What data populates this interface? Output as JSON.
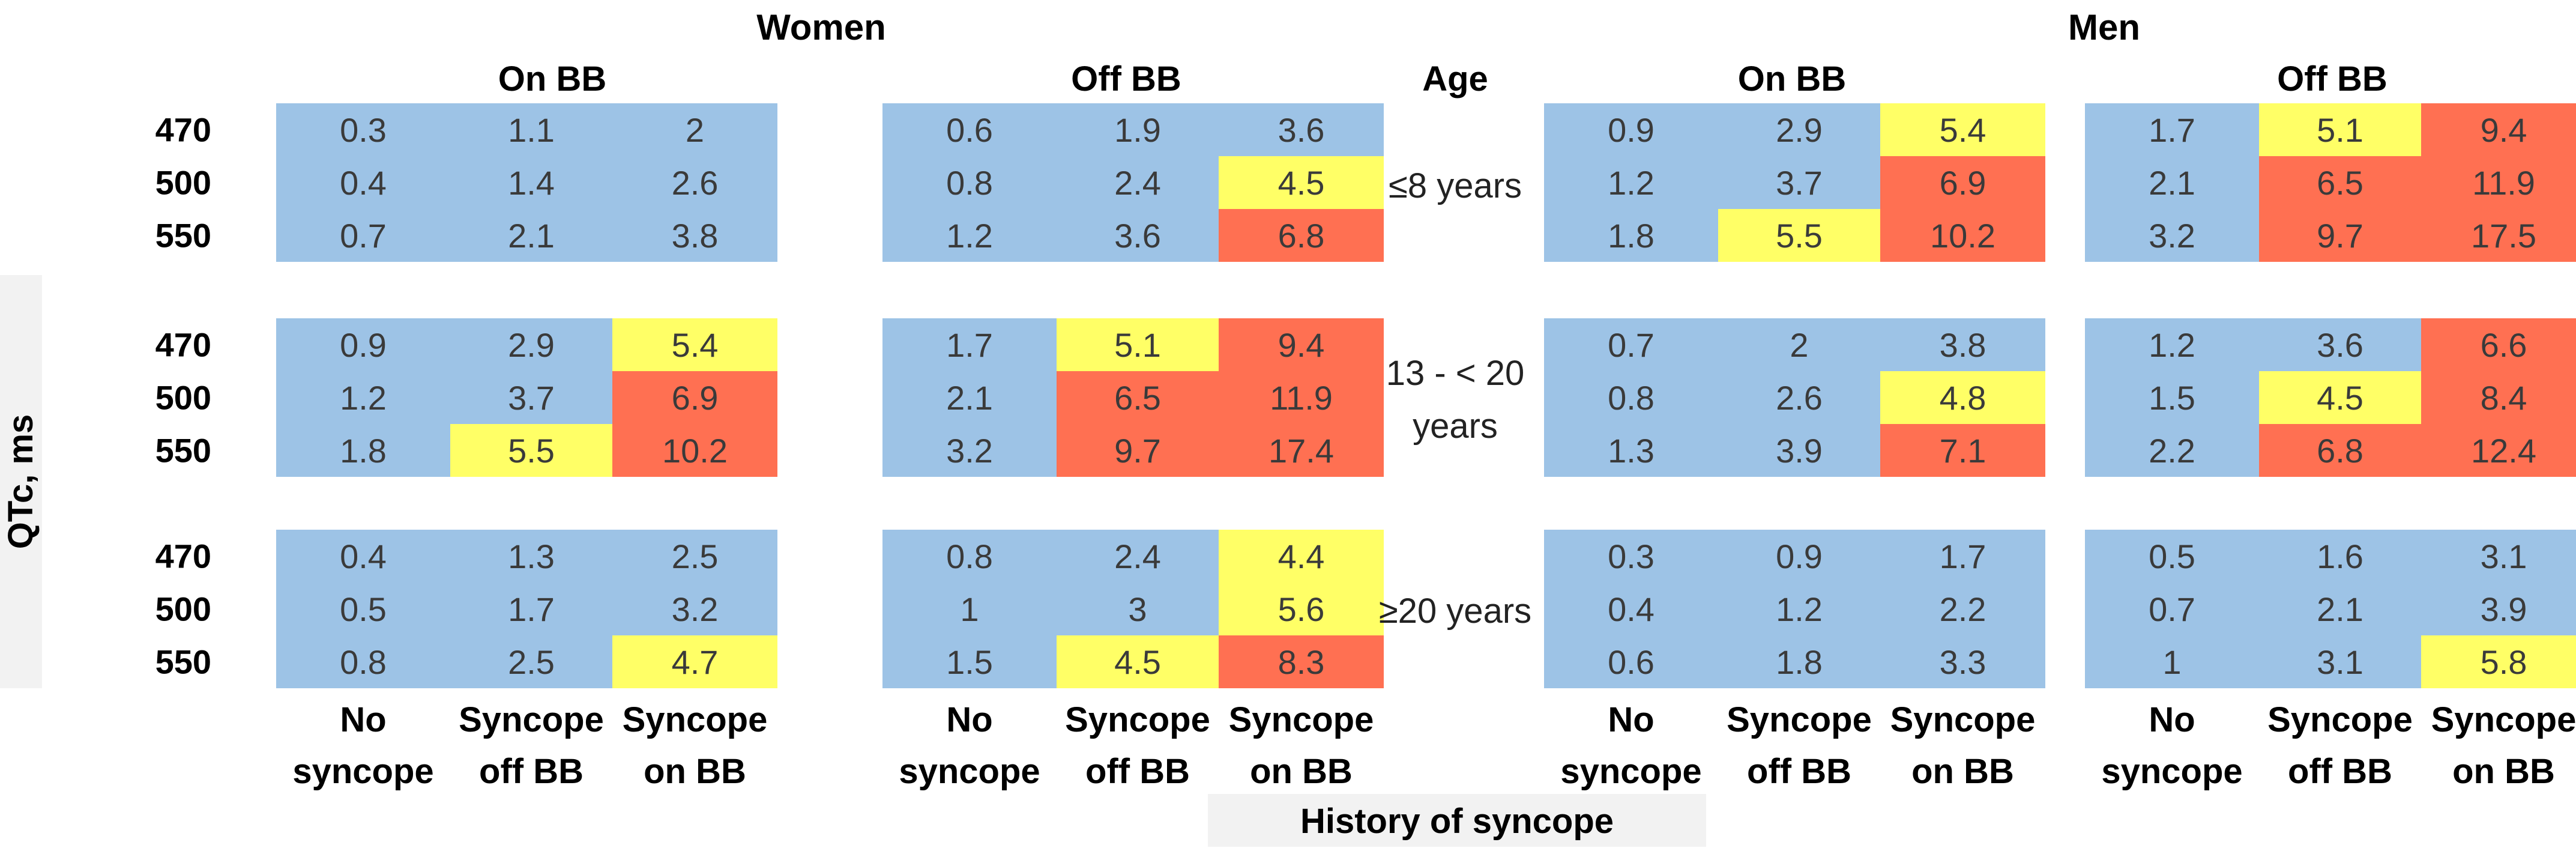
{
  "chart_data": {
    "type": "heatmap",
    "row_label_axis": "QTc, ms",
    "column_label_axis": "History of syncope",
    "age_header": "Age",
    "sex_groups": [
      "Women",
      "Men"
    ],
    "treatment_groups": [
      "On BB",
      "Off BB"
    ],
    "qtc_levels": [
      "470",
      "500",
      "550"
    ],
    "syncope_columns": [
      [
        "No",
        "syncope"
      ],
      [
        "Syncope",
        "off BB"
      ],
      [
        "Syncope",
        "on BB"
      ]
    ],
    "age_groups": [
      {
        "label_lines": [
          "≤8 years"
        ]
      },
      {
        "label_lines": [
          "13 - < 20",
          "years"
        ]
      },
      {
        "label_lines": [
          "≥20 years"
        ]
      }
    ],
    "colors": {
      "low": "#9dc3e6",
      "mid": "#ffff66",
      "high": "#ff7052"
    },
    "color_legend": {
      "low": "blue",
      "mid": "yellow",
      "high": "red"
    },
    "blocks": {
      "women_on_bb": [
        [
          [
            0.3,
            1.1,
            2
          ],
          [
            0.4,
            1.4,
            2.6
          ],
          [
            0.7,
            2.1,
            3.8
          ]
        ],
        [
          [
            0.9,
            2.9,
            5.4
          ],
          [
            1.2,
            3.7,
            6.9
          ],
          [
            1.8,
            5.5,
            10.2
          ]
        ],
        [
          [
            0.4,
            1.3,
            2.5
          ],
          [
            0.5,
            1.7,
            3.2
          ],
          [
            0.8,
            2.5,
            4.7
          ]
        ]
      ],
      "women_off_bb": [
        [
          [
            0.6,
            1.9,
            3.6
          ],
          [
            0.8,
            2.4,
            4.5
          ],
          [
            1.2,
            3.6,
            6.8
          ]
        ],
        [
          [
            1.7,
            5.1,
            9.4
          ],
          [
            2.1,
            6.5,
            11.9
          ],
          [
            3.2,
            9.7,
            17.4
          ]
        ],
        [
          [
            0.8,
            2.4,
            4.4
          ],
          [
            1,
            3,
            5.6
          ],
          [
            1.5,
            4.5,
            8.3
          ]
        ]
      ],
      "men_on_bb": [
        [
          [
            0.9,
            2.9,
            5.4
          ],
          [
            1.2,
            3.7,
            6.9
          ],
          [
            1.8,
            5.5,
            10.2
          ]
        ],
        [
          [
            0.7,
            2,
            3.8
          ],
          [
            0.8,
            2.6,
            4.8
          ],
          [
            1.3,
            3.9,
            7.1
          ]
        ],
        [
          [
            0.3,
            0.9,
            1.7
          ],
          [
            0.4,
            1.2,
            2.2
          ],
          [
            0.6,
            1.8,
            3.3
          ]
        ]
      ],
      "men_off_bb": [
        [
          [
            1.7,
            5.1,
            9.4
          ],
          [
            2.1,
            6.5,
            11.9
          ],
          [
            3.2,
            9.7,
            17.5
          ]
        ],
        [
          [
            1.2,
            3.6,
            6.6
          ],
          [
            1.5,
            4.5,
            8.4
          ],
          [
            2.2,
            6.8,
            12.4
          ]
        ],
        [
          [
            0.5,
            1.6,
            3.1
          ],
          [
            0.7,
            2.1,
            3.9
          ],
          [
            1,
            3.1,
            5.8
          ]
        ]
      ]
    },
    "cell_colors": {
      "women_on_bb": [
        [
          [
            "low",
            "low",
            "low"
          ],
          [
            "low",
            "low",
            "low"
          ],
          [
            "low",
            "low",
            "low"
          ]
        ],
        [
          [
            "low",
            "low",
            "mid"
          ],
          [
            "low",
            "low",
            "high"
          ],
          [
            "low",
            "mid",
            "high"
          ]
        ],
        [
          [
            "low",
            "low",
            "low"
          ],
          [
            "low",
            "low",
            "low"
          ],
          [
            "low",
            "low",
            "mid"
          ]
        ]
      ],
      "women_off_bb": [
        [
          [
            "low",
            "low",
            "low"
          ],
          [
            "low",
            "low",
            "mid"
          ],
          [
            "low",
            "low",
            "high"
          ]
        ],
        [
          [
            "low",
            "mid",
            "high"
          ],
          [
            "low",
            "high",
            "high"
          ],
          [
            "low",
            "high",
            "high"
          ]
        ],
        [
          [
            "low",
            "low",
            "mid"
          ],
          [
            "low",
            "low",
            "mid"
          ],
          [
            "low",
            "mid",
            "high"
          ]
        ]
      ],
      "men_on_bb": [
        [
          [
            "low",
            "low",
            "mid"
          ],
          [
            "low",
            "low",
            "high"
          ],
          [
            "low",
            "mid",
            "high"
          ]
        ],
        [
          [
            "low",
            "low",
            "low"
          ],
          [
            "low",
            "low",
            "mid"
          ],
          [
            "low",
            "low",
            "high"
          ]
        ],
        [
          [
            "low",
            "low",
            "low"
          ],
          [
            "low",
            "low",
            "low"
          ],
          [
            "low",
            "low",
            "low"
          ]
        ]
      ],
      "men_off_bb": [
        [
          [
            "low",
            "mid",
            "high"
          ],
          [
            "low",
            "high",
            "high"
          ],
          [
            "low",
            "high",
            "high"
          ]
        ],
        [
          [
            "low",
            "low",
            "high"
          ],
          [
            "low",
            "mid",
            "high"
          ],
          [
            "low",
            "high",
            "high"
          ]
        ],
        [
          [
            "low",
            "low",
            "low"
          ],
          [
            "low",
            "low",
            "low"
          ],
          [
            "low",
            "low",
            "mid"
          ]
        ]
      ]
    }
  }
}
